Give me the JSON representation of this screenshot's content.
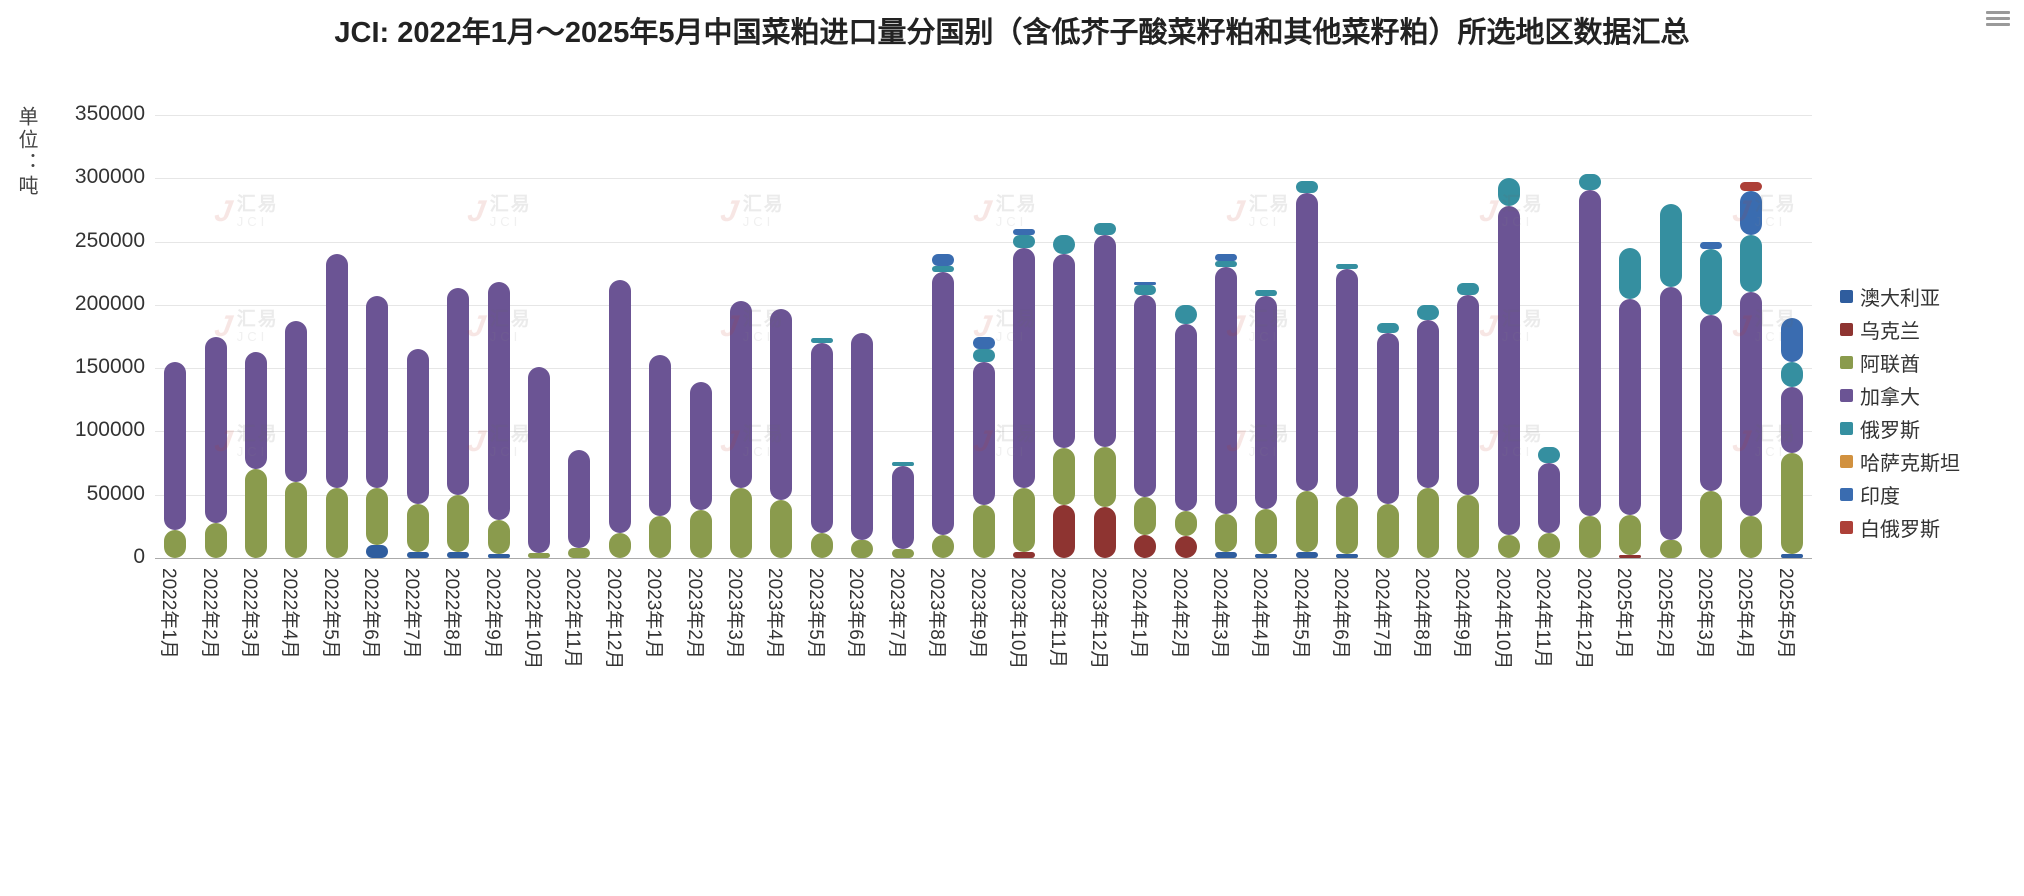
{
  "menu": {
    "icon": "hamburger-icon"
  },
  "watermark": {
    "cn": "汇易",
    "en": "JCI"
  },
  "chart_data": {
    "type": "bar",
    "stacked": true,
    "title": "JCI: 2022年1月～2025年5月中国菜粕进口量分国别（含低芥子酸菜籽粕和其他菜籽粕）所选地区数据汇总",
    "ylabel": "单位：吨",
    "xlabel": "",
    "ylim": [
      0,
      350000
    ],
    "ytick_step": 50000,
    "grid": true,
    "legend_position": "right",
    "categories": [
      "2022年1月",
      "2022年2月",
      "2022年3月",
      "2022年4月",
      "2022年5月",
      "2022年6月",
      "2022年7月",
      "2022年8月",
      "2022年9月",
      "2022年10月",
      "2022年11月",
      "2022年12月",
      "2023年1月",
      "2023年2月",
      "2023年3月",
      "2023年4月",
      "2023年5月",
      "2023年6月",
      "2023年7月",
      "2023年8月",
      "2023年9月",
      "2023年10月",
      "2023年11月",
      "2023年12月",
      "2024年1月",
      "2024年2月",
      "2024年3月",
      "2024年4月",
      "2024年5月",
      "2024年6月",
      "2024年7月",
      "2024年8月",
      "2024年9月",
      "2024年10月",
      "2024年11月",
      "2024年12月",
      "2025年1月",
      "2025年2月",
      "2025年3月",
      "2025年4月",
      "2025年5月"
    ],
    "series": [
      {
        "name": "澳大利亚",
        "color": "#2f5d9e",
        "values": [
          0,
          0,
          0,
          0,
          0,
          10000,
          5000,
          5000,
          3000,
          0,
          0,
          0,
          0,
          0,
          0,
          0,
          0,
          0,
          0,
          0,
          0,
          0,
          0,
          0,
          0,
          0,
          5000,
          3000,
          5000,
          3000,
          0,
          0,
          0,
          0,
          0,
          0,
          0,
          0,
          0,
          0,
          3000
        ]
      },
      {
        "name": "乌克兰",
        "color": "#8e3431",
        "values": [
          0,
          0,
          0,
          0,
          0,
          0,
          0,
          0,
          0,
          0,
          0,
          0,
          0,
          0,
          0,
          0,
          0,
          0,
          0,
          0,
          0,
          5000,
          42000,
          40000,
          18000,
          17000,
          0,
          0,
          0,
          0,
          0,
          0,
          0,
          0,
          0,
          0,
          2000,
          0,
          0,
          0,
          0
        ]
      },
      {
        "name": "阿联酋",
        "color": "#8a9b4d",
        "values": [
          22000,
          28000,
          70000,
          60000,
          55000,
          45000,
          38000,
          45000,
          27000,
          4000,
          8000,
          20000,
          33000,
          38000,
          55000,
          46000,
          20000,
          14000,
          7000,
          18000,
          42000,
          50000,
          45000,
          48000,
          30000,
          20000,
          30000,
          36000,
          48000,
          45000,
          43000,
          55000,
          50000,
          18000,
          20000,
          33000,
          32000,
          14000,
          53000,
          33000,
          80000
        ]
      },
      {
        "name": "加拿大",
        "color": "#6b5494",
        "values": [
          133000,
          147000,
          93000,
          127000,
          185000,
          152000,
          122000,
          163000,
          188000,
          147000,
          77000,
          200000,
          127000,
          101000,
          148000,
          151000,
          150000,
          164000,
          66000,
          208000,
          113000,
          190000,
          153000,
          167000,
          160000,
          148000,
          195000,
          168000,
          235000,
          180000,
          135000,
          133000,
          158000,
          260000,
          55000,
          258000,
          171000,
          200000,
          139000,
          177000,
          52000
        ]
      },
      {
        "name": "俄罗斯",
        "color": "#358fa0",
        "values": [
          0,
          0,
          0,
          0,
          0,
          0,
          0,
          0,
          0,
          0,
          0,
          0,
          0,
          0,
          0,
          0,
          4000,
          0,
          3000,
          5000,
          10000,
          10000,
          15000,
          10000,
          8000,
          15000,
          5000,
          5000,
          10000,
          4000,
          8000,
          12000,
          9000,
          22000,
          13000,
          12000,
          40000,
          66000,
          52000,
          45000,
          20000
        ]
      },
      {
        "name": "哈萨克斯坦",
        "color": "#d1913f",
        "values": [
          0,
          0,
          0,
          0,
          0,
          0,
          0,
          0,
          0,
          0,
          0,
          0,
          0,
          0,
          0,
          0,
          0,
          0,
          0,
          0,
          0,
          0,
          0,
          0,
          0,
          0,
          0,
          0,
          0,
          0,
          0,
          0,
          0,
          0,
          0,
          0,
          0,
          0,
          0,
          0,
          0
        ]
      },
      {
        "name": "印度",
        "color": "#3a6cb0",
        "values": [
          0,
          0,
          0,
          0,
          0,
          0,
          0,
          0,
          0,
          0,
          0,
          0,
          0,
          0,
          0,
          0,
          0,
          0,
          0,
          9000,
          10000,
          5000,
          0,
          0,
          2000,
          0,
          5000,
          0,
          0,
          0,
          0,
          0,
          0,
          0,
          0,
          0,
          0,
          0,
          6000,
          35000,
          35000
        ]
      },
      {
        "name": "白俄罗斯",
        "color": "#ad4038",
        "values": [
          0,
          0,
          0,
          0,
          0,
          0,
          0,
          0,
          0,
          0,
          0,
          0,
          0,
          0,
          0,
          0,
          0,
          0,
          0,
          0,
          0,
          0,
          0,
          0,
          0,
          0,
          0,
          0,
          0,
          0,
          0,
          0,
          0,
          0,
          0,
          0,
          0,
          0,
          0,
          7000,
          0
        ]
      }
    ]
  }
}
